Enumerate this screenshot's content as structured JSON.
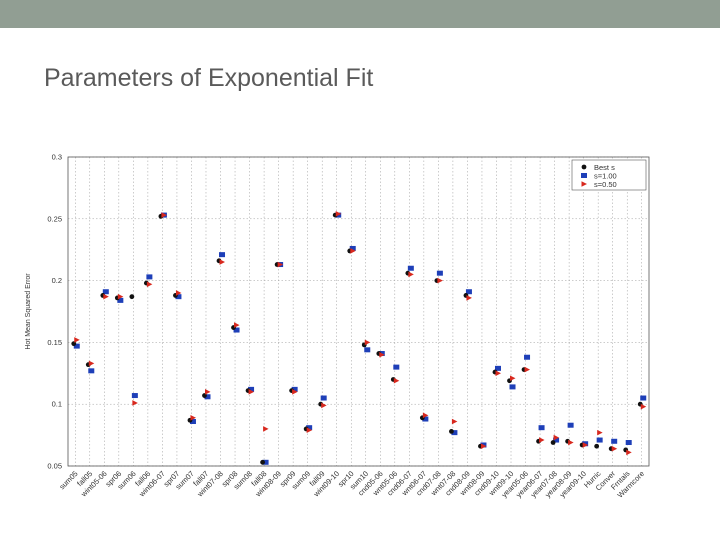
{
  "slide": {
    "title": "Parameters of Exponential Fit"
  },
  "colors": {
    "top_bar": "#919e93",
    "best": "#111111",
    "s100": "#1e3fb8",
    "s050": "#d8281e",
    "grid": "#9a9a9a"
  },
  "chart_data": {
    "type": "scatter",
    "title": "",
    "ylabel": "Hot Mean Squared Error",
    "xlabel": "",
    "ylim": [
      0.05,
      0.3
    ],
    "yticks": [
      0.05,
      0.1,
      0.15,
      0.2,
      0.25,
      0.3
    ],
    "ytick_labels": [
      "0.05",
      "0.1",
      "0.15",
      "0.2",
      "0.25",
      "0.3"
    ],
    "grid": true,
    "legend_position": "top-right",
    "categories": [
      "sum05",
      "fall05",
      "wint05-06",
      "spr06",
      "sum06",
      "fall06",
      "wint06-07",
      "spr07",
      "sum07",
      "fall07",
      "wint07-08",
      "spr08",
      "sum08",
      "fall08",
      "wint08-09",
      "spr09",
      "sum09",
      "fall09",
      "wint09-10",
      "spr10",
      "sum10",
      "cnd05-06",
      "wnt05-06",
      "cnd06-07",
      "wnt06-07",
      "cnd07-08",
      "wnt07-08",
      "cnd08-09",
      "wnt08-09",
      "cnd09-10",
      "wnt09-10",
      "year05-06",
      "year06-07",
      "year07-08",
      "year08-09",
      "year09-10",
      "Hurric",
      "Conver",
      "Frntals",
      "Warmcore"
    ],
    "series": [
      {
        "name": "Best s",
        "marker": "circle",
        "values": [
          0.149,
          0.132,
          0.188,
          0.186,
          0.187,
          0.198,
          0.252,
          0.188,
          0.087,
          0.107,
          0.216,
          0.162,
          0.111,
          0.053,
          0.213,
          0.111,
          0.08,
          0.1,
          0.253,
          0.224,
          0.148,
          0.141,
          0.12,
          0.206,
          0.089,
          0.2,
          0.078,
          0.188,
          0.066,
          0.126,
          0.119,
          0.128,
          0.07,
          0.069,
          0.07,
          0.067,
          0.066,
          0.064,
          0.063,
          0.1
        ]
      },
      {
        "name": "s=1.00",
        "marker": "square",
        "values": [
          0.147,
          0.127,
          0.191,
          0.184,
          0.107,
          0.203,
          0.253,
          0.187,
          0.086,
          0.106,
          0.221,
          0.16,
          0.112,
          0.053,
          0.213,
          0.112,
          0.081,
          0.105,
          0.253,
          0.226,
          0.144,
          0.141,
          0.13,
          0.21,
          0.088,
          0.206,
          0.077,
          0.191,
          0.067,
          0.129,
          0.114,
          0.138,
          0.081,
          0.071,
          0.083,
          0.068,
          0.071,
          0.07,
          0.069,
          0.105
        ]
      },
      {
        "name": "s=0.50",
        "marker": "triangle",
        "values": [
          0.152,
          0.133,
          0.187,
          0.187,
          0.101,
          0.197,
          0.253,
          0.19,
          0.089,
          0.11,
          0.215,
          0.164,
          0.11,
          0.08,
          0.213,
          0.11,
          0.079,
          0.099,
          0.254,
          0.224,
          0.15,
          0.14,
          0.119,
          0.205,
          0.091,
          0.2,
          0.086,
          0.186,
          0.066,
          0.125,
          0.121,
          0.128,
          0.071,
          0.073,
          0.069,
          0.067,
          0.077,
          0.064,
          0.061,
          0.098
        ]
      }
    ]
  }
}
